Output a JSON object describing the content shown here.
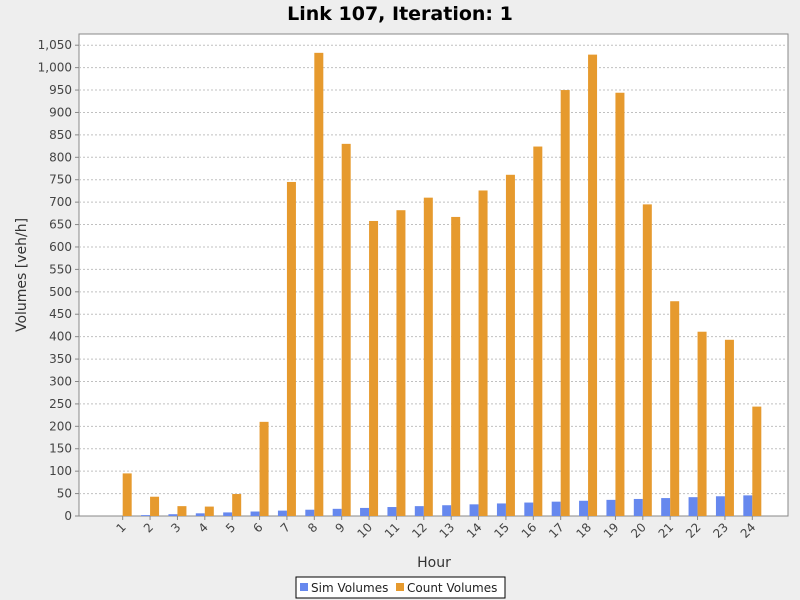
{
  "chart_data": {
    "type": "bar",
    "title": "Link 107, Iteration: 1",
    "xlabel": "Hour",
    "ylabel": "Volumes [veh/h]",
    "ylim": [
      0,
      1075
    ],
    "yticks": [
      0,
      50,
      100,
      150,
      200,
      250,
      300,
      350,
      400,
      450,
      500,
      550,
      600,
      650,
      700,
      750,
      800,
      850,
      900,
      950,
      1000,
      1050
    ],
    "ytick_labels": [
      "0",
      "50",
      "100",
      "150",
      "200",
      "250",
      "300",
      "350",
      "400",
      "450",
      "500",
      "550",
      "600",
      "650",
      "700",
      "750",
      "800",
      "850",
      "900",
      "950",
      "1,000",
      "1,050"
    ],
    "grid": true,
    "legend": "bottom",
    "categories": [
      "1",
      "2",
      "3",
      "4",
      "5",
      "6",
      "7",
      "8",
      "9",
      "10",
      "11",
      "12",
      "13",
      "14",
      "15",
      "16",
      "17",
      "18",
      "19",
      "20",
      "21",
      "22",
      "23",
      "24"
    ],
    "series": [
      {
        "name": "Sim Volumes",
        "color": "#6688ee",
        "values": [
          0,
          2,
          4,
          6,
          8,
          10,
          12,
          14,
          16,
          18,
          20,
          22,
          24,
          26,
          28,
          30,
          32,
          34,
          36,
          38,
          40,
          42,
          44,
          46
        ]
      },
      {
        "name": "Count Volumes",
        "color": "#e69a2e",
        "values": [
          95,
          43,
          22,
          21,
          49,
          210,
          745,
          1033,
          830,
          658,
          682,
          710,
          667,
          726,
          761,
          824,
          950,
          1029,
          944,
          695,
          479,
          411,
          393,
          244
        ]
      }
    ]
  }
}
